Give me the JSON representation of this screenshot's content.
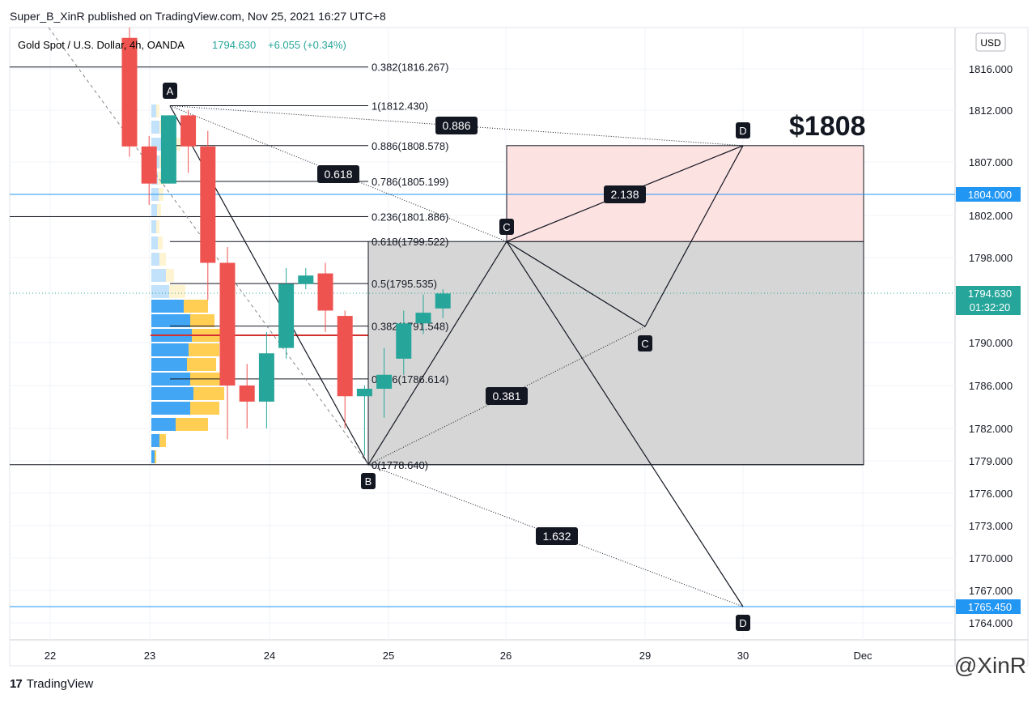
{
  "header": {
    "published": "Super_B_XinR published on TradingView.com, Nov 25, 2021 16:27 UTC+8"
  },
  "symbol": {
    "name": "Gold Spot / U.S. Dollar, 4h, OANDA",
    "price": "1794.630",
    "change": "+6.055 (+0.34%)",
    "currency": "USD"
  },
  "footer": {
    "brand": "TradingView",
    "watermark": "@XinR"
  },
  "colors": {
    "up": "#26a69a",
    "down": "#ef5350",
    "hline": "#2196f3",
    "pattern_fill": "#d6d6d6",
    "target_fill": "#fde2e2"
  },
  "chart_data": {
    "type": "candlestick",
    "x_ticks": [
      "22",
      "23",
      "24",
      "25",
      "26",
      "29",
      "30",
      "Dec"
    ],
    "y_ticks": [
      "1816.000",
      "1812.000",
      "1807.000",
      "1802.000",
      "1798.000",
      "1790.000",
      "1786.000",
      "1782.000",
      "1779.000",
      "1776.000",
      "1773.000",
      "1770.000",
      "1767.000",
      "1764.000"
    ],
    "price_labels": [
      {
        "value": "1804.000",
        "note": ""
      },
      {
        "value": "1794.630",
        "note": "01:32:20"
      },
      {
        "value": "1765.450",
        "note": ""
      }
    ],
    "candles": [
      {
        "o": 1820.5,
        "h": 1822.0,
        "l": 1807.5,
        "c": 1808.5
      },
      {
        "o": 1808.5,
        "h": 1809.5,
        "l": 1803.0,
        "c": 1805.0
      },
      {
        "o": 1805.0,
        "h": 1811.5,
        "l": 1805.0,
        "c": 1811.5
      },
      {
        "o": 1811.5,
        "h": 1812.0,
        "l": 1806.0,
        "c": 1808.5
      },
      {
        "o": 1808.5,
        "h": 1810.0,
        "l": 1794.0,
        "c": 1797.5
      },
      {
        "o": 1797.5,
        "h": 1799.0,
        "l": 1781.0,
        "c": 1786.0
      },
      {
        "o": 1786.0,
        "h": 1788.0,
        "l": 1782.0,
        "c": 1784.5
      },
      {
        "o": 1784.5,
        "h": 1791.0,
        "l": 1782.0,
        "c": 1789.0
      },
      {
        "o": 1789.5,
        "h": 1797.0,
        "l": 1788.5,
        "c": 1795.5
      },
      {
        "o": 1795.5,
        "h": 1797.0,
        "l": 1795.0,
        "c": 1796.3
      },
      {
        "o": 1796.5,
        "h": 1797.5,
        "l": 1791.0,
        "c": 1793.0
      },
      {
        "o": 1792.5,
        "h": 1793.0,
        "l": 1782.0,
        "c": 1785.0
      },
      {
        "o": 1785.0,
        "h": 1786.0,
        "l": 1779.5,
        "c": 1785.7
      },
      {
        "o": 1785.7,
        "h": 1789.5,
        "l": 1783.0,
        "c": 1787.0
      },
      {
        "o": 1788.5,
        "h": 1793.0,
        "l": 1787.0,
        "c": 1791.8
      },
      {
        "o": 1791.8,
        "h": 1794.5,
        "l": 1790.8,
        "c": 1792.8
      },
      {
        "o": 1793.2,
        "h": 1795.0,
        "l": 1792.3,
        "c": 1794.6
      }
    ],
    "fib_levels": [
      {
        "label": "0.382(1816.267)",
        "value": 1816.267
      },
      {
        "label": "1(1812.430)",
        "value": 1812.43
      },
      {
        "label": "0.886(1808.578)",
        "value": 1808.578
      },
      {
        "label": "0.786(1805.199)",
        "value": 1805.199
      },
      {
        "label": "0.236(1801.886)",
        "value": 1801.886
      },
      {
        "label": "0.618(1799.522)",
        "value": 1799.522
      },
      {
        "label": "0.5(1795.535)",
        "value": 1795.535
      },
      {
        "label": "0.382(1791.548)",
        "value": 1791.548
      },
      {
        "label": "0.236(1786.614)",
        "value": 1786.614
      },
      {
        "label": "0(1778.640)",
        "value": 1778.64
      }
    ],
    "pattern_points": [
      {
        "label": "A",
        "price": 1812.43
      },
      {
        "label": "B",
        "price": 1778.64
      },
      {
        "label": "C",
        "price": 1799.522
      },
      {
        "label": "D",
        "price": 1808.578
      },
      {
        "label": "C",
        "price": 1791.5
      },
      {
        "label": "D",
        "price": 1765.45
      }
    ],
    "ratios": [
      "0.886",
      "0.618",
      "2.138",
      "0.381",
      "1.632"
    ],
    "target_label": "$1808",
    "ylim": [
      1762.5,
      1822.0
    ]
  }
}
